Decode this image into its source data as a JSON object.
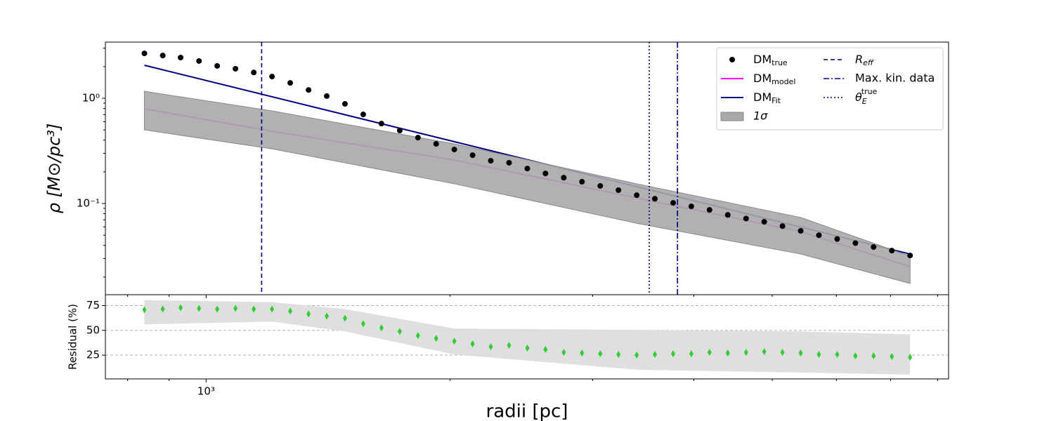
{
  "chart_data": [
    {
      "type": "log-profile",
      "ylabel": "ρ [M⊙/pc³]",
      "xlim": [
        751,
        8254
      ],
      "ylim": [
        0.0136,
        3.42
      ],
      "xscale": "log",
      "yscale": "log",
      "xticks": [
        {
          "value": 1000,
          "label": "10³"
        }
      ],
      "xminorticks": [
        800,
        900,
        2000,
        3000,
        4000,
        5000,
        6000,
        7000,
        8000
      ],
      "yticks": [
        {
          "value": 0.1,
          "label": "10⁻¹"
        },
        {
          "value": 1,
          "label": "10⁰"
        }
      ],
      "yminorticks": [
        0.02,
        0.03,
        0.04,
        0.05,
        0.06,
        0.07,
        0.08,
        0.09,
        0.2,
        0.3,
        0.4,
        0.5,
        0.6,
        0.7,
        0.8,
        0.9,
        2,
        3
      ],
      "series": [
        {
          "name": "DM",
          "subscript": "true",
          "kind": "scatter",
          "color": "#000000",
          "x": [
            839,
            884,
            930,
            980,
            1032,
            1087,
            1145,
            1206,
            1270,
            1338,
            1409,
            1484,
            1563,
            1646,
            1734,
            1826,
            1923,
            2025,
            2133,
            2246,
            2366,
            2492,
            2624,
            2764,
            2911,
            3066,
            3229,
            3401,
            3581,
            3772,
            3972,
            4183,
            4406,
            4641,
            4887,
            5147,
            5421,
            5709,
            6013,
            6333,
            6669,
            7024,
            7398
          ],
          "values": [
            2.67,
            2.55,
            2.44,
            2.26,
            2.03,
            1.91,
            1.76,
            1.61,
            1.4,
            1.2,
            1.05,
            0.885,
            0.703,
            0.575,
            0.494,
            0.423,
            0.369,
            0.326,
            0.288,
            0.255,
            0.244,
            0.215,
            0.193,
            0.176,
            0.161,
            0.147,
            0.134,
            0.12,
            0.111,
            0.1015,
            0.094,
            0.087,
            0.078,
            0.072,
            0.067,
            0.061,
            0.055,
            0.05,
            0.046,
            0.042,
            0.0386,
            0.0357,
            0.0321
          ]
        },
        {
          "name": "DM",
          "subscript": "model",
          "kind": "line",
          "color": "#ff00ff",
          "x": [
            839,
            1206,
            2025,
            3401,
            5421,
            7398
          ],
          "values": [
            0.794,
            0.486,
            0.259,
            0.113,
            0.0541,
            0.0251
          ]
        },
        {
          "name": "DM",
          "subscript": "Fit",
          "kind": "line",
          "color": "#000080",
          "x": [
            839,
            7398
          ],
          "values": [
            2.06,
            0.0331
          ]
        },
        {
          "name": "1σ",
          "kind": "band",
          "color": "#a9a9a9",
          "x": [
            839,
            1206,
            2025,
            3401,
            5421,
            7398
          ],
          "upper": [
            1.166,
            0.759,
            0.369,
            0.154,
            0.0737,
            0.0316
          ],
          "lower": [
            0.501,
            0.331,
            0.154,
            0.0649,
            0.0331,
            0.0174
          ]
        }
      ],
      "vlines": [
        {
          "name": "R",
          "subscript": "eff",
          "x": 1171,
          "style": "dashed",
          "color": "#000080"
        },
        {
          "name": "Max. kin. data",
          "x": 3819,
          "style": "dashdot",
          "color": "#000080"
        },
        {
          "name": "θ",
          "subscript": "E",
          "superscript": "true",
          "x": 3524,
          "style": "dotted",
          "color": "#000080"
        }
      ],
      "legend": "upper right"
    },
    {
      "type": "residual",
      "xlabel": "radii [pc]",
      "ylabel": "Residual (%)",
      "xlim": [
        751,
        8254
      ],
      "ylim": [
        1,
        86
      ],
      "xscale": "log",
      "xticks": [
        {
          "value": 1000,
          "label": "10³"
        }
      ],
      "xminorticks": [
        800,
        900,
        2000,
        3000,
        4000,
        5000,
        6000,
        7000,
        8000
      ],
      "yticks": [
        25,
        50,
        75
      ],
      "grid": true,
      "series": [
        {
          "kind": "band",
          "color": "#dcdcdc",
          "x": [
            839,
            1206,
            1484,
            2025,
            3401,
            5421,
            7398
          ],
          "upper": [
            80.6,
            78.5,
            71.5,
            51.8,
            50.4,
            48.9,
            46.1
          ],
          "lower": [
            56.0,
            58.8,
            48.9,
            25.7,
            10.2,
            7.4,
            5.3
          ]
        },
        {
          "kind": "scatter",
          "color": "#32cd32",
          "x": [
            839,
            884,
            930,
            980,
            1032,
            1087,
            1145,
            1206,
            1270,
            1338,
            1409,
            1484,
            1563,
            1646,
            1734,
            1826,
            1923,
            2025,
            2133,
            2246,
            2366,
            2492,
            2624,
            2764,
            2911,
            3066,
            3229,
            3401,
            3581,
            3772,
            3972,
            4183,
            4406,
            4641,
            4887,
            5147,
            5421,
            5709,
            6013,
            6333,
            6669,
            7024,
            7398
          ],
          "values": [
            70.8,
            71.5,
            72.9,
            72.2,
            71.5,
            72.2,
            71.5,
            71.5,
            69.4,
            66.5,
            64.4,
            62.3,
            56.7,
            52.5,
            48.9,
            44.7,
            41.9,
            39.1,
            36.3,
            33.5,
            34.9,
            32.1,
            30.7,
            27.8,
            27.1,
            26.4,
            25.7,
            25.0,
            25.7,
            26.4,
            26.4,
            27.8,
            27.1,
            27.8,
            28.5,
            27.8,
            27.1,
            25.7,
            25.7,
            24.3,
            24.3,
            23.6,
            22.9
          ]
        }
      ]
    }
  ]
}
